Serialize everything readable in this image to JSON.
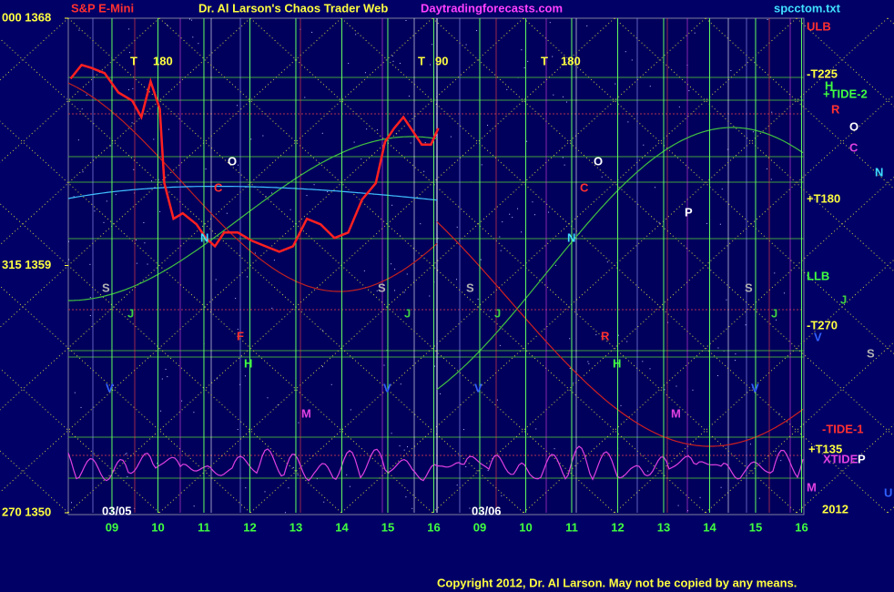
{
  "header": {
    "instrument": "S&P E-Mini",
    "title": "Dr. Al Larson's Chaos Trader Web",
    "site": "Daytradingforecasts.com",
    "file": "spcctom.txt"
  },
  "copyright": "Copyright 2012, Dr. Al Larson. May not be copied by any means.",
  "chart_data": {
    "type": "line",
    "x": [
      8.1,
      8.34,
      8.54,
      8.84,
      9.14,
      9.44,
      9.64,
      9.84,
      10.04,
      10.14,
      10.34,
      10.54,
      10.84,
      11.04,
      11.24,
      11.44,
      11.74,
      12.04,
      12.34,
      12.64,
      12.94,
      13.24,
      13.54,
      13.84,
      14.14,
      14.44,
      14.74,
      14.94,
      15.14,
      15.34,
      15.54,
      15.74,
      15.94,
      16.1
    ],
    "series": [
      {
        "name": "S&P E-Mini",
        "color": "#ff2020",
        "values": [
          1365.8,
          1366.3,
          1366.2,
          1366.0,
          1365.3,
          1365.0,
          1364.4,
          1365.7,
          1364.7,
          1362.0,
          1360.7,
          1360.9,
          1360.5,
          1360.0,
          1359.7,
          1360.2,
          1360.2,
          1359.9,
          1359.7,
          1359.5,
          1359.7,
          1360.7,
          1360.5,
          1360.0,
          1360.2,
          1361.4,
          1362.0,
          1363.5,
          1364.0,
          1364.4,
          1363.9,
          1363.4,
          1363.4,
          1364.0
        ]
      }
    ],
    "xlim": [
      8.05,
      24.05
    ],
    "xticks": [
      {
        "value": 9,
        "label": "09"
      },
      10,
      11,
      12,
      13,
      14,
      15,
      16,
      {
        "value": 17,
        "label": "09"
      },
      {
        "value": 18,
        "label": "10"
      },
      {
        "value": 19,
        "label": "11"
      },
      {
        "value": 20,
        "label": "12"
      },
      {
        "value": 21,
        "label": "13"
      },
      {
        "value": 22,
        "label": "14"
      },
      {
        "value": 23,
        "label": "15"
      },
      {
        "value": 24,
        "label": "16"
      }
    ],
    "ylim": [
      1350,
      1368
    ],
    "yticks": [
      {
        "value": 1350,
        "label": "270 1350"
      },
      {
        "value": 1359,
        "label": "315 1359"
      },
      {
        "value": 1368,
        "label": "000 1368"
      }
    ],
    "grid": true,
    "dates": [
      "03/05",
      "03/06"
    ],
    "year": "2012",
    "annotations": [
      {
        "text": "T",
        "color": "#ffff40"
      },
      {
        "text": "180",
        "color": "#ffff40"
      },
      {
        "text": "T",
        "color": "#ffff40"
      },
      {
        "text": "90",
        "color": "#ffff40"
      },
      {
        "text": "T",
        "color": "#ffff40"
      },
      {
        "text": "180",
        "color": "#ffff40"
      },
      {
        "text": "O",
        "color": "#ffffff"
      },
      {
        "text": "C",
        "color": "#ff3030"
      },
      {
        "text": "N",
        "color": "#40e0ff"
      },
      {
        "text": "S",
        "color": "#b0b0b0"
      },
      {
        "text": "J",
        "color": "#40d040"
      },
      {
        "text": "F",
        "color": "#ff3030"
      },
      {
        "text": "H",
        "color": "#40ff40"
      },
      {
        "text": "V",
        "color": "#3060ff"
      },
      {
        "text": "M",
        "color": "#e040e0"
      },
      {
        "text": "V",
        "color": "#3060ff"
      },
      {
        "text": "S",
        "color": "#b0b0b0"
      },
      {
        "text": "J",
        "color": "#40d040"
      },
      {
        "text": "O",
        "color": "#ffffff"
      },
      {
        "text": "C",
        "color": "#ff3030"
      },
      {
        "text": "N",
        "color": "#40e0ff"
      },
      {
        "text": "S",
        "color": "#b0b0b0"
      },
      {
        "text": "J",
        "color": "#40d040"
      },
      {
        "text": "R",
        "color": "#ff3030"
      },
      {
        "text": "H",
        "color": "#40ff40"
      },
      {
        "text": "V",
        "color": "#3060ff"
      },
      {
        "text": "M",
        "color": "#e040e0"
      },
      {
        "text": "P",
        "color": "#ffffff"
      },
      {
        "text": "S",
        "color": "#b0b0b0"
      },
      {
        "text": "J",
        "color": "#40d040"
      },
      {
        "text": "V",
        "color": "#3060ff"
      },
      {
        "text": "ULB",
        "color": "#ff3030"
      },
      {
        "text": "-T225",
        "color": "#ffff40"
      },
      {
        "text": "H",
        "color": "#40ff40"
      },
      {
        "text": "+TIDE-2",
        "color": "#40ff40"
      },
      {
        "text": "R",
        "color": "#ff3030"
      },
      {
        "text": "O",
        "color": "#ffffff"
      },
      {
        "text": "C",
        "color": "#e040e0"
      },
      {
        "text": "N",
        "color": "#40e0ff"
      },
      {
        "text": "+T180",
        "color": "#ffff40"
      },
      {
        "text": "LLB",
        "color": "#40ff40"
      },
      {
        "text": "J",
        "color": "#40d040"
      },
      {
        "text": "-T270",
        "color": "#ffff40"
      },
      {
        "text": "V",
        "color": "#3060ff"
      },
      {
        "text": "S",
        "color": "#b0b0b0"
      },
      {
        "text": "-TIDE-1",
        "color": "#ff3030"
      },
      {
        "text": "+T135",
        "color": "#ffff40"
      },
      {
        "text": "XTIDE",
        "color": "#e040e0"
      },
      {
        "text": "P",
        "color": "#ffffff"
      },
      {
        "text": "M",
        "color": "#e040e0"
      },
      {
        "text": "U",
        "color": "#3060ff"
      }
    ]
  }
}
